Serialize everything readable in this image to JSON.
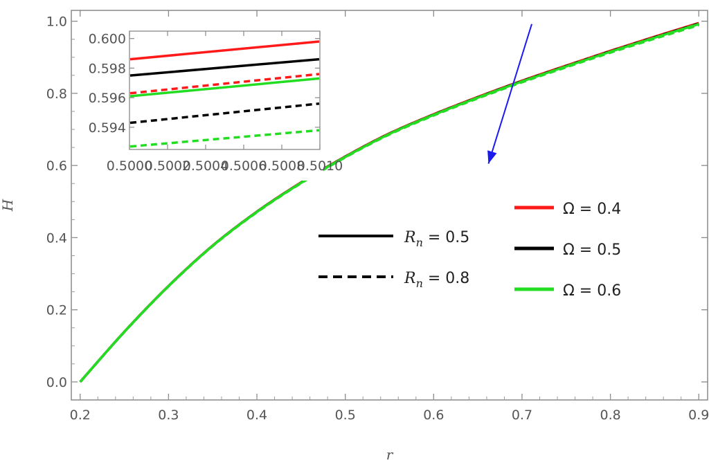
{
  "chart_data": {
    "type": "line",
    "xlabel": "r",
    "ylabel": "H",
    "xlim": [
      0.19,
      0.91
    ],
    "ylim": [
      -0.05,
      1.03
    ],
    "xticks": [
      "0.2",
      "0.3",
      "0.4",
      "0.5",
      "0.6",
      "0.7",
      "0.8",
      "0.9"
    ],
    "yticks": [
      "0.0",
      "0.2",
      "0.4",
      "0.6",
      "0.8",
      "1.0"
    ],
    "xtick_values": [
      0.2,
      0.3,
      0.4,
      0.5,
      0.6,
      0.7,
      0.8,
      0.9
    ],
    "ytick_values": [
      0.0,
      0.2,
      0.4,
      0.6,
      0.8,
      1.0
    ],
    "grid": false,
    "legend_linestyle": [
      {
        "label_main": "R",
        "label_sub": "n",
        "label_rest": " = 0.5",
        "dash": "solid"
      },
      {
        "label_main": "R",
        "label_sub": "n",
        "label_rest": " = 0.8",
        "dash": "dashed"
      }
    ],
    "legend_color": [
      {
        "label": "Ω = 0.4",
        "color": "#ff1a1a"
      },
      {
        "label": "Ω = 0.5",
        "color": "#000000"
      },
      {
        "label": "Ω = 0.6",
        "color": "#22dd22"
      }
    ],
    "main_curve": {
      "x": [
        0.2,
        0.25,
        0.3,
        0.35,
        0.4,
        0.45,
        0.5,
        0.55,
        0.6,
        0.65,
        0.7,
        0.75,
        0.8,
        0.85,
        0.9
      ],
      "y": [
        0.0,
        0.139,
        0.266,
        0.378,
        0.472,
        0.553,
        0.625,
        0.689,
        0.742,
        0.79,
        0.835,
        0.877,
        0.918,
        0.957,
        0.995
      ]
    },
    "series": [
      {
        "omega": 0.4,
        "rn": 0.5,
        "color": "#ff1a1a",
        "dash": "solid",
        "y_offset": 0.0
      },
      {
        "omega": 0.5,
        "rn": 0.5,
        "color": "#000000",
        "dash": "solid",
        "y_offset": -0.0015
      },
      {
        "omega": 0.6,
        "rn": 0.5,
        "color": "#22dd22",
        "dash": "solid",
        "y_offset": -0.003
      },
      {
        "omega": 0.4,
        "rn": 0.8,
        "color": "#ff1a1a",
        "dash": "dashed",
        "y_offset": -0.002
      },
      {
        "omega": 0.5,
        "rn": 0.8,
        "color": "#000000",
        "dash": "dashed",
        "y_offset": -0.004
      },
      {
        "omega": 0.6,
        "rn": 0.8,
        "color": "#22dd22",
        "dash": "dashed",
        "y_offset": -0.006
      }
    ],
    "inset": {
      "xlim": [
        0.5,
        0.501
      ],
      "ylim": [
        0.5925,
        0.6005
      ],
      "xticks": [
        "0.5000",
        "0.5002",
        "0.5004",
        "0.5006",
        "0.5008",
        "0.5010"
      ],
      "xtick_values": [
        0.5,
        0.5002,
        0.5004,
        0.5006,
        0.5008,
        0.501
      ],
      "yticks": [
        "0.600",
        "0.598",
        "0.596",
        "0.594"
      ],
      "ytick_values": [
        0.6,
        0.598,
        0.596,
        0.594
      ],
      "series": [
        {
          "omega": 0.4,
          "rn": 0.5,
          "color": "#ff1a1a",
          "dash": "solid",
          "y": [
            0.5986,
            0.5998
          ]
        },
        {
          "omega": 0.5,
          "rn": 0.5,
          "color": "#000000",
          "dash": "solid",
          "y": [
            0.5975,
            0.5986
          ]
        },
        {
          "omega": 0.6,
          "rn": 0.5,
          "color": "#22dd22",
          "dash": "solid",
          "y": [
            0.5961,
            0.5973
          ]
        },
        {
          "omega": 0.4,
          "rn": 0.8,
          "color": "#ff1a1a",
          "dash": "dashed",
          "y": [
            0.5963,
            0.5976
          ]
        },
        {
          "omega": 0.5,
          "rn": 0.8,
          "color": "#000000",
          "dash": "dashed",
          "y": [
            0.5943,
            0.5956
          ]
        },
        {
          "omega": 0.6,
          "rn": 0.8,
          "color": "#22dd22",
          "dash": "dashed",
          "y": [
            0.5927,
            0.5938
          ]
        }
      ]
    },
    "arrow": {
      "color": "#1a1aee",
      "from": [
        0.711,
        0.992
      ],
      "to": [
        0.662,
        0.605
      ]
    }
  }
}
